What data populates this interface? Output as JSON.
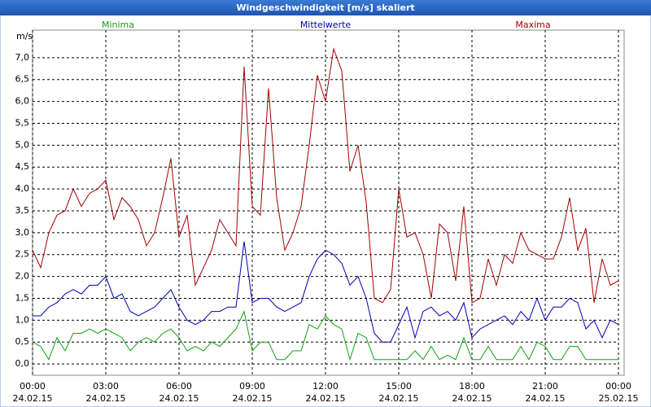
{
  "chart_data": {
    "type": "line",
    "title": "Windgeschwindigkeit [m/s] skaliert",
    "y_label": "m/s",
    "grid": true,
    "x": [
      0,
      20,
      40,
      60,
      80,
      100,
      120,
      140,
      160,
      180,
      200,
      220,
      240,
      260,
      280,
      300,
      320,
      340,
      360,
      380,
      400,
      420,
      440,
      460,
      480,
      500,
      520,
      540,
      560,
      580,
      600,
      620,
      640,
      660,
      680,
      700,
      720,
      740,
      760,
      780,
      800,
      820,
      840,
      860,
      880,
      900,
      920,
      940,
      960,
      980,
      1000,
      1020,
      1040,
      1060,
      1080,
      1100,
      1120,
      1140,
      1160,
      1180,
      1200,
      1220,
      1240,
      1260,
      1280,
      1300,
      1320,
      1340,
      1360,
      1380,
      1400,
      1420,
      1440
    ],
    "xlim": [
      0,
      1440
    ],
    "xticks": [
      {
        "value": 0,
        "label": "00:00",
        "date": "24.02.15"
      },
      {
        "value": 180,
        "label": "03:00",
        "date": "24.02.15"
      },
      {
        "value": 360,
        "label": "06:00",
        "date": "24.02.15"
      },
      {
        "value": 540,
        "label": "09:00",
        "date": "24.02.15"
      },
      {
        "value": 720,
        "label": "12:00",
        "date": "24.02.15"
      },
      {
        "value": 900,
        "label": "15:00",
        "date": "24.02.15"
      },
      {
        "value": 1080,
        "label": "18:00",
        "date": "24.02.15"
      },
      {
        "value": 1260,
        "label": "21:00",
        "date": "24.02.15"
      },
      {
        "value": 1440,
        "label": "00:00",
        "date": "25.02.15"
      }
    ],
    "ylim": [
      -0.24,
      7.63
    ],
    "yticks": [
      {
        "value": 0,
        "label": "0,0"
      },
      {
        "value": 0.5,
        "label": "0,5"
      },
      {
        "value": 1,
        "label": "1,0"
      },
      {
        "value": 1.5,
        "label": "1,5"
      },
      {
        "value": 2,
        "label": "2,0"
      },
      {
        "value": 2.5,
        "label": "2,5"
      },
      {
        "value": 3,
        "label": "3,0"
      },
      {
        "value": 3.5,
        "label": "3,5"
      },
      {
        "value": 4,
        "label": "4,0"
      },
      {
        "value": 4.5,
        "label": "4,5"
      },
      {
        "value": 5,
        "label": "5,0"
      },
      {
        "value": 5.5,
        "label": "5,5"
      },
      {
        "value": 6,
        "label": "6,0"
      },
      {
        "value": 6.5,
        "label": "6,5"
      },
      {
        "value": 7,
        "label": "7,0"
      }
    ],
    "series": [
      {
        "name": "Minima",
        "color": "#12a012",
        "values": [
          0.5,
          0.4,
          0.1,
          0.6,
          0.3,
          0.7,
          0.7,
          0.8,
          0.7,
          0.8,
          0.7,
          0.6,
          0.3,
          0.5,
          0.6,
          0.5,
          0.7,
          0.8,
          0.6,
          0.3,
          0.4,
          0.3,
          0.5,
          0.4,
          0.6,
          0.8,
          1.2,
          0.3,
          0.5,
          0.5,
          0.1,
          0.1,
          0.3,
          0.3,
          0.9,
          0.8,
          1.1,
          0.9,
          0.8,
          0.1,
          0.7,
          0.6,
          0.1,
          0.1,
          0.1,
          0.1,
          0.1,
          0.3,
          0.1,
          0.4,
          0.1,
          0.2,
          0.1,
          0.6,
          0.1,
          0.1,
          0.4,
          0.1,
          0.1,
          0.1,
          0.4,
          0.1,
          0.5,
          0.4,
          0.1,
          0.1,
          0.4,
          0.4,
          0.1,
          0.1,
          0.1,
          0.1,
          0.1
        ]
      },
      {
        "name": "Mittelwerte",
        "color": "#0000b4",
        "values": [
          1.1,
          1.1,
          1.3,
          1.4,
          1.6,
          1.7,
          1.6,
          1.8,
          1.8,
          2.0,
          1.5,
          1.6,
          1.2,
          1.1,
          1.2,
          1.3,
          1.5,
          1.7,
          1.3,
          1.0,
          0.9,
          1.0,
          1.2,
          1.2,
          1.3,
          1.3,
          2.8,
          1.4,
          1.5,
          1.5,
          1.3,
          1.2,
          1.3,
          1.4,
          2.0,
          2.4,
          2.6,
          2.5,
          2.3,
          1.8,
          2.0,
          1.5,
          0.7,
          0.5,
          0.5,
          0.9,
          1.3,
          0.6,
          1.2,
          1.3,
          1.1,
          1.2,
          1.0,
          1.4,
          0.6,
          0.8,
          0.9,
          1.0,
          1.1,
          0.9,
          1.2,
          1.0,
          1.5,
          1.0,
          1.3,
          1.3,
          1.5,
          1.4,
          0.8,
          1.0,
          0.6,
          1.0,
          0.9
        ]
      },
      {
        "name": "Maxima",
        "color": "#a00000",
        "values": [
          2.6,
          2.2,
          3.0,
          3.4,
          3.5,
          4.0,
          3.6,
          3.9,
          4.0,
          4.2,
          3.3,
          3.8,
          3.6,
          3.3,
          2.7,
          3.0,
          3.8,
          4.7,
          2.9,
          3.4,
          1.8,
          2.2,
          2.6,
          3.3,
          3.0,
          2.7,
          6.8,
          3.6,
          3.4,
          6.3,
          3.8,
          2.6,
          3.0,
          3.6,
          5.0,
          6.6,
          6.0,
          7.2,
          6.7,
          4.4,
          5.0,
          3.7,
          1.5,
          1.4,
          1.7,
          4.0,
          2.9,
          3.0,
          2.5,
          1.5,
          3.2,
          3.0,
          1.9,
          3.6,
          1.4,
          1.5,
          2.4,
          1.8,
          2.5,
          2.3,
          3.0,
          2.6,
          2.5,
          2.4,
          2.4,
          2.9,
          3.8,
          2.6,
          3.1,
          1.4,
          2.4,
          1.8,
          1.9
        ]
      }
    ]
  }
}
